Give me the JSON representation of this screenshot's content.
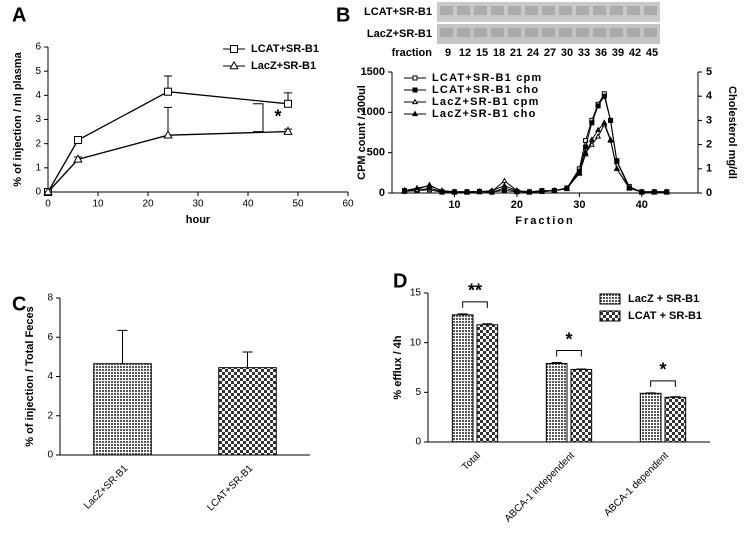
{
  "blot": {
    "rows": [
      "LCAT+SR-B1",
      "LacZ+SR-B1"
    ],
    "fraction_label": "fraction",
    "fractions": [
      9,
      12,
      15,
      18,
      21,
      24,
      27,
      30,
      33,
      36,
      39,
      42,
      45
    ]
  },
  "chart_data": [
    {
      "panel": "A",
      "type": "line",
      "x": [
        0,
        6,
        24,
        48
      ],
      "xlim": [
        0,
        60
      ],
      "xticks": [
        0,
        10,
        20,
        30,
        40,
        50,
        60
      ],
      "ylim": [
        0,
        6
      ],
      "yticks": [
        0,
        1,
        2,
        3,
        4,
        5,
        6
      ],
      "x_label": "hour",
      "y_label": "% of injection / ml plasma",
      "legend": "upper right",
      "annotations": [
        "*"
      ],
      "series": [
        {
          "name": "LCAT+SR-B1",
          "marker": "square",
          "filled": false,
          "color": "#000000",
          "values": [
            0,
            2.15,
            4.15,
            3.65
          ],
          "errors": [
            0,
            0.1,
            0.65,
            0.45
          ]
        },
        {
          "name": "LacZ+SR-B1",
          "marker": "triangle",
          "filled": false,
          "color": "#000000",
          "values": [
            0,
            1.35,
            2.35,
            2.5
          ],
          "errors": [
            0,
            0.1,
            1.15,
            0.1
          ]
        }
      ]
    },
    {
      "panel": "B",
      "type": "line",
      "x": [
        2,
        4,
        6,
        8,
        10,
        12,
        14,
        16,
        18,
        20,
        22,
        24,
        26,
        28,
        30,
        31,
        32,
        33,
        34,
        35,
        36,
        38,
        40,
        42,
        44
      ],
      "xlim": [
        0,
        49
      ],
      "xticks": [
        10,
        20,
        30,
        40
      ],
      "ylim": [
        0,
        1500
      ],
      "yticks": [
        0,
        500,
        1000,
        1500
      ],
      "y2lim": [
        0,
        5
      ],
      "y2ticks": [
        0,
        1,
        2,
        3,
        4,
        5
      ],
      "x_label": "Fraction",
      "y_label": "CPM count / 200ul",
      "y2_label": "Cholesterol mg/dl",
      "legend": "upper left",
      "series": [
        {
          "name": "LCAT+SR-B1 cpm",
          "marker": "square",
          "filled": false,
          "color": "#000000",
          "values": [
            20,
            30,
            40,
            10,
            10,
            10,
            20,
            10,
            60,
            20,
            10,
            20,
            30,
            60,
            300,
            650,
            900,
            1100,
            1230,
            900,
            400,
            80,
            10,
            10,
            10
          ]
        },
        {
          "name": "LCAT+SR-B1 cho",
          "marker": "square",
          "filled": true,
          "color": "#000000",
          "axis": "y2",
          "values": [
            0.1,
            0.1,
            0.2,
            0.05,
            0.05,
            0.05,
            0.05,
            0.05,
            0.1,
            0.05,
            0.05,
            0.1,
            0.1,
            0.2,
            0.9,
            1.9,
            2.9,
            3.6,
            4.0,
            3.0,
            1.3,
            0.2,
            0.05,
            0.05,
            0.05
          ]
        },
        {
          "name": "LacZ+SR-B1 cpm",
          "marker": "triangle",
          "filled": false,
          "color": "#000000",
          "values": [
            30,
            40,
            100,
            20,
            10,
            10,
            20,
            20,
            150,
            30,
            10,
            20,
            30,
            50,
            250,
            500,
            600,
            700,
            850,
            650,
            300,
            60,
            10,
            10,
            10
          ]
        },
        {
          "name": "LacZ+SR-B1 cho",
          "marker": "triangle",
          "filled": true,
          "color": "#000000",
          "axis": "y2",
          "values": [
            0.1,
            0.2,
            0.3,
            0.1,
            0.05,
            0.05,
            0.05,
            0.1,
            0.3,
            0.1,
            0.05,
            0.05,
            0.1,
            0.2,
            0.8,
            1.6,
            2.2,
            2.6,
            2.9,
            2.2,
            1.0,
            0.2,
            0.05,
            0.05,
            0.05
          ]
        }
      ]
    },
    {
      "panel": "C",
      "type": "bar",
      "categories": [
        "LacZ+SR-B1",
        "LCAT+SR-B1"
      ],
      "values": [
        4.65,
        4.45
      ],
      "errors": [
        1.7,
        0.8
      ],
      "patterns": [
        "fine",
        "check"
      ],
      "ylim": [
        0,
        8
      ],
      "yticks": [
        0,
        2,
        4,
        6,
        8
      ],
      "y_label": "% of injection / Total Feces"
    },
    {
      "panel": "D",
      "type": "bar",
      "categories": [
        "Total",
        "ABCA-1 independent",
        "ABCA-1 dependent"
      ],
      "ylim": [
        0,
        15
      ],
      "yticks": [
        0,
        5,
        10,
        15
      ],
      "y_label": "% efflux / 4h",
      "legend": "upper right",
      "annotations": [
        "**",
        "*",
        "*"
      ],
      "series": [
        {
          "name": "LacZ + SR-B1",
          "pattern": "fine",
          "values": [
            12.8,
            7.9,
            4.9
          ],
          "errors": [
            0.1,
            0.1,
            0.05
          ]
        },
        {
          "name": "LCAT + SR-B1",
          "pattern": "check",
          "values": [
            11.8,
            7.3,
            4.5
          ],
          "errors": [
            0.1,
            0.05,
            0.05
          ]
        }
      ]
    }
  ]
}
